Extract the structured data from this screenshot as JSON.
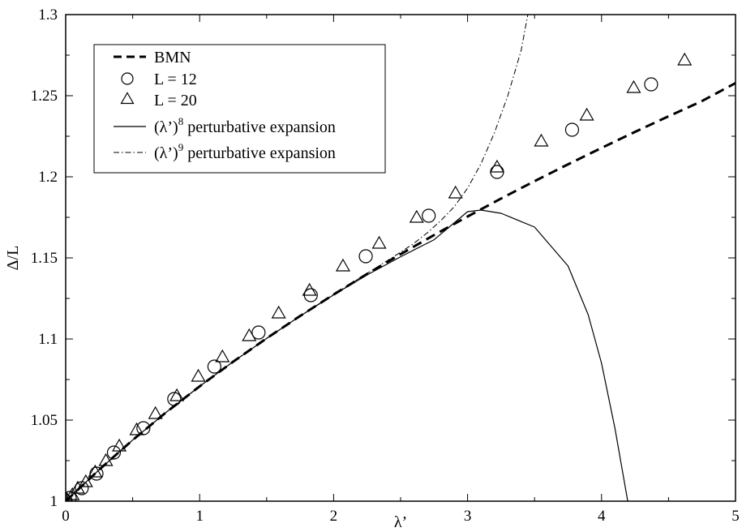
{
  "chart_data": {
    "type": "line",
    "xlabel": "λ’",
    "ylabel": "Δ/L",
    "xlim": [
      0,
      5
    ],
    "ylim": [
      1.0,
      1.3
    ],
    "grid": false,
    "legend_position": "top-left",
    "x_ticks": [
      "0",
      "1",
      "2",
      "3",
      "4",
      "5"
    ],
    "y_ticks": [
      "1",
      "1.05",
      "1.1",
      "1.15",
      "1.2",
      "1.25",
      "1.3"
    ],
    "x_tick_values": [
      0,
      1,
      2,
      3,
      4,
      5
    ],
    "y_tick_values": [
      1.0,
      1.05,
      1.1,
      1.15,
      1.2,
      1.25,
      1.3
    ],
    "series": [
      {
        "name": "BMN",
        "style": "dashed-line",
        "x": [
          0,
          0.25,
          0.5,
          0.75,
          1.0,
          1.25,
          1.5,
          1.75,
          2.0,
          2.25,
          2.5,
          2.75,
          3.0,
          3.25,
          3.5,
          3.75,
          4.0,
          4.25,
          4.5,
          4.75,
          5.0
        ],
        "y": [
          1.0,
          1.0194,
          1.0377,
          1.0548,
          1.0708,
          1.086,
          1.1004,
          1.1142,
          1.1274,
          1.1401,
          1.1523,
          1.1641,
          1.1755,
          1.1866,
          1.1973,
          1.2077,
          1.2178,
          1.2277,
          1.2373,
          1.2467,
          1.2578
        ]
      },
      {
        "name": "L = 12",
        "style": "open-circle",
        "x": [
          0.0,
          0.03,
          0.12,
          0.23,
          0.36,
          0.58,
          0.81,
          1.11,
          1.44,
          1.83,
          2.24,
          2.71,
          3.22,
          3.78,
          4.37
        ],
        "y": [
          1.0,
          1.002,
          1.008,
          1.017,
          1.03,
          1.045,
          1.063,
          1.083,
          1.104,
          1.127,
          1.151,
          1.176,
          1.203,
          1.229,
          1.257
        ]
      },
      {
        "name": "L = 20",
        "style": "open-triangle",
        "x": [
          0.0,
          0.01,
          0.05,
          0.09,
          0.15,
          0.22,
          0.3,
          0.4,
          0.53,
          0.67,
          0.83,
          0.99,
          1.17,
          1.37,
          1.59,
          1.82,
          2.07,
          2.34,
          2.62,
          2.91,
          3.22,
          3.55,
          3.89,
          4.24,
          4.62
        ],
        "y": [
          1.0,
          1.001,
          1.004,
          1.008,
          1.012,
          1.018,
          1.025,
          1.034,
          1.044,
          1.054,
          1.065,
          1.077,
          1.089,
          1.102,
          1.116,
          1.13,
          1.145,
          1.159,
          1.175,
          1.19,
          1.206,
          1.222,
          1.238,
          1.255,
          1.272
        ]
      },
      {
        "name": "(λ’)<sup>8</sup> perturbative expansion",
        "style": "solid-line",
        "x": [
          0,
          0.25,
          0.5,
          0.75,
          1.0,
          1.25,
          1.5,
          1.75,
          2.0,
          2.25,
          2.5,
          2.75,
          3.0,
          3.1,
          3.25,
          3.5,
          3.75,
          3.9,
          4.0,
          4.1,
          4.2
        ],
        "y": [
          1.0,
          1.0194,
          1.0377,
          1.0548,
          1.0708,
          1.086,
          1.1003,
          1.1141,
          1.1272,
          1.1395,
          1.1507,
          1.1612,
          1.1785,
          1.1795,
          1.1775,
          1.169,
          1.145,
          1.115,
          1.085,
          1.045,
          0.998
        ]
      },
      {
        "name": "(λ’)<sup>9</sup> perturbative expansion",
        "style": "dash-dot-line",
        "x": [
          0,
          0.25,
          0.5,
          0.75,
          1.0,
          1.25,
          1.5,
          1.75,
          2.0,
          2.25,
          2.5,
          2.6,
          2.7,
          2.8,
          2.9,
          3.0,
          3.1,
          3.2,
          3.3,
          3.4,
          3.45
        ],
        "y": [
          1.0,
          1.0194,
          1.0377,
          1.0548,
          1.0708,
          1.086,
          1.1004,
          1.1142,
          1.1275,
          1.1404,
          1.1535,
          1.159,
          1.1655,
          1.173,
          1.1815,
          1.193,
          1.208,
          1.227,
          1.25,
          1.278,
          1.3
        ]
      }
    ]
  }
}
